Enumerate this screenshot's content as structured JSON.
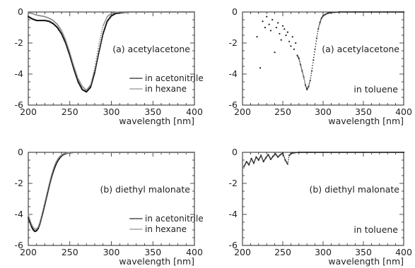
{
  "chart_data": [
    {
      "type": "scatter",
      "panel_label": "(a) acetylacetone",
      "xlabel": "wavelength [nm]",
      "ylabel": "",
      "xlim": [
        200,
        400
      ],
      "ylim": [
        -6,
        0
      ],
      "x_ticks": [
        200,
        250,
        300,
        350,
        400
      ],
      "y_ticks": [
        0,
        -2,
        -4,
        -6
      ],
      "grid": false,
      "legend": "bottom-right",
      "series": [
        {
          "name": "in acetonitrile",
          "style": "dotted",
          "x": [
            200,
            205,
            210,
            215,
            220,
            225,
            230,
            235,
            240,
            245,
            250,
            255,
            260,
            265,
            270,
            275,
            280,
            285,
            290,
            295,
            300,
            305,
            310,
            320,
            340,
            360,
            380,
            400
          ],
          "y": [
            -0.3,
            -0.45,
            -0.55,
            -0.55,
            -0.55,
            -0.6,
            -0.75,
            -1.0,
            -1.4,
            -2.0,
            -2.8,
            -3.7,
            -4.5,
            -5.0,
            -5.15,
            -4.85,
            -3.9,
            -2.6,
            -1.4,
            -0.6,
            -0.25,
            -0.1,
            -0.05,
            0,
            0,
            0,
            0,
            0
          ]
        },
        {
          "name": "in hexane",
          "style": "dotted-light",
          "x": [
            200,
            205,
            210,
            215,
            220,
            225,
            230,
            235,
            240,
            245,
            250,
            255,
            260,
            265,
            270,
            275,
            280,
            285,
            290,
            295,
            300,
            305,
            310,
            320,
            340,
            360,
            380,
            400
          ],
          "y": [
            -0.05,
            -0.1,
            -0.2,
            -0.25,
            -0.3,
            -0.4,
            -0.55,
            -0.8,
            -1.2,
            -1.8,
            -2.6,
            -3.5,
            -4.3,
            -4.8,
            -5.05,
            -4.7,
            -3.6,
            -2.1,
            -0.9,
            -0.3,
            -0.1,
            -0.03,
            0,
            0,
            0,
            0,
            0,
            0
          ]
        }
      ]
    },
    {
      "type": "scatter",
      "panel_label": "(a) acetylacetone",
      "annotation": "in toluene",
      "xlabel": "wavelength [nm]",
      "ylabel": "",
      "xlim": [
        200,
        400
      ],
      "ylim": [
        -6,
        0
      ],
      "x_ticks": [
        200,
        250,
        300,
        350,
        400
      ],
      "y_ticks": [
        0,
        -2,
        -4,
        -6
      ],
      "grid": false,
      "series": [
        {
          "name": "",
          "style": "dotted",
          "x": [
            218,
            222,
            225,
            228,
            230,
            233,
            235,
            237,
            240,
            242,
            244,
            246,
            248,
            250,
            252,
            254,
            256,
            258,
            260,
            262,
            264,
            266,
            268,
            270,
            272,
            274,
            276,
            278,
            280,
            282,
            284,
            286,
            288,
            290,
            292,
            294,
            296,
            298,
            300,
            303,
            306,
            310,
            320,
            340,
            360,
            380,
            400
          ],
          "y": [
            -1.6,
            -3.6,
            -0.6,
            -1.0,
            -0.3,
            -0.8,
            -1.2,
            -0.5,
            -2.6,
            -1.0,
            -0.7,
            -1.4,
            -1.8,
            -0.9,
            -1.1,
            -1.5,
            -1.3,
            -1.9,
            -2.2,
            -1.6,
            -2.4,
            -2.0,
            -2.8,
            -3.0,
            -3.4,
            -3.8,
            -4.2,
            -4.7,
            -5.0,
            -4.8,
            -4.4,
            -3.8,
            -3.1,
            -2.4,
            -1.7,
            -1.1,
            -0.7,
            -0.4,
            -0.25,
            -0.15,
            -0.08,
            -0.04,
            0,
            0,
            0,
            0,
            0
          ]
        }
      ]
    },
    {
      "type": "scatter",
      "panel_label": "(b) diethyl malonate",
      "xlabel": "wavelength [nm]",
      "ylabel": "",
      "xlim": [
        200,
        400
      ],
      "ylim": [
        -6,
        0
      ],
      "x_ticks": [
        200,
        250,
        300,
        350,
        400
      ],
      "y_ticks": [
        0,
        -2,
        -4,
        -6
      ],
      "grid": false,
      "legend": "bottom-right",
      "series": [
        {
          "name": "in acetonitrile",
          "style": "dotted",
          "x": [
            200,
            202,
            204,
            206,
            208,
            210,
            212,
            214,
            216,
            218,
            220,
            222,
            224,
            226,
            228,
            230,
            232,
            234,
            236,
            238,
            240,
            242,
            244,
            246,
            248,
            250,
            255,
            260,
            280,
            300,
            350,
            400
          ],
          "y": [
            -4.2,
            -4.5,
            -4.8,
            -5.0,
            -5.1,
            -5.05,
            -4.9,
            -4.6,
            -4.2,
            -3.8,
            -3.35,
            -2.9,
            -2.45,
            -2.0,
            -1.6,
            -1.25,
            -0.95,
            -0.7,
            -0.5,
            -0.35,
            -0.23,
            -0.15,
            -0.1,
            -0.06,
            -0.03,
            -0.02,
            0,
            0,
            0,
            0,
            0,
            0
          ]
        },
        {
          "name": "in hexane",
          "style": "dotted-light",
          "x": [
            200,
            202,
            204,
            206,
            208,
            210,
            212,
            214,
            216,
            218,
            220,
            222,
            224,
            226,
            228,
            230,
            232,
            234,
            236,
            238,
            240,
            242,
            244,
            246,
            248,
            250,
            255,
            260,
            280,
            300,
            350,
            400
          ],
          "y": [
            -4.0,
            -4.35,
            -4.65,
            -4.85,
            -4.95,
            -4.95,
            -4.8,
            -4.5,
            -4.1,
            -3.65,
            -3.2,
            -2.75,
            -2.3,
            -1.85,
            -1.45,
            -1.1,
            -0.8,
            -0.58,
            -0.4,
            -0.27,
            -0.18,
            -0.11,
            -0.07,
            -0.04,
            -0.02,
            0,
            0,
            0,
            0,
            0,
            0,
            0
          ]
        }
      ]
    },
    {
      "type": "scatter",
      "panel_label": "(b) diethyl malonate",
      "annotation": "in toluene",
      "xlabel": "wavelength [nm]",
      "ylabel": "",
      "xlim": [
        200,
        400
      ],
      "ylim": [
        -6,
        0
      ],
      "x_ticks": [
        200,
        250,
        300,
        350,
        400
      ],
      "y_ticks": [
        0,
        -2,
        -4,
        -6
      ],
      "grid": false,
      "series": [
        {
          "name": "",
          "style": "dotted",
          "x": [
            202,
            205,
            208,
            211,
            214,
            217,
            220,
            223,
            226,
            229,
            232,
            235,
            238,
            241,
            244,
            247,
            250,
            253,
            256,
            258,
            260,
            262,
            265,
            270,
            280,
            300,
            350,
            400
          ],
          "y": [
            -0.9,
            -0.6,
            -0.8,
            -0.4,
            -0.7,
            -0.3,
            -0.5,
            -0.2,
            -0.6,
            -0.35,
            -0.15,
            -0.45,
            -0.25,
            -0.1,
            -0.3,
            -0.15,
            -0.05,
            -0.5,
            -0.75,
            -0.2,
            -0.1,
            -0.05,
            -0.02,
            0,
            0,
            0,
            0,
            0
          ]
        }
      ]
    }
  ]
}
